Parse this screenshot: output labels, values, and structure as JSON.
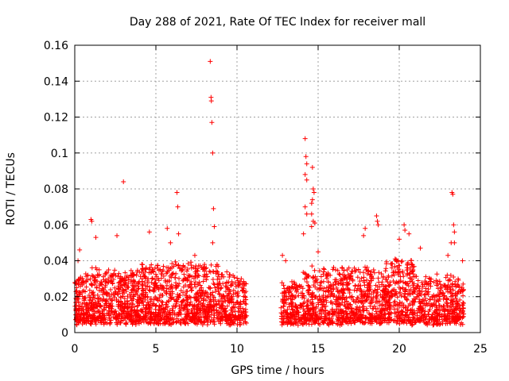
{
  "chart_data": {
    "type": "scatter",
    "title": "Day 288 of 2021, Rate Of TEC Index for receiver mall",
    "xlabel": "GPS time / hours",
    "ylabel": "ROTI / TECUs",
    "xlim": [
      0,
      25
    ],
    "ylim": [
      0,
      0.16
    ],
    "xticks": [
      0,
      5,
      10,
      15,
      20,
      25
    ],
    "xtick_labels": [
      "0",
      "5",
      "10",
      "15",
      "20",
      "25"
    ],
    "yticks": [
      0,
      0.02,
      0.04,
      0.06,
      0.08,
      0.1,
      0.12,
      0.14,
      0.16
    ],
    "ytick_labels": [
      "0",
      "0.02",
      "0.04",
      "0.06",
      "0.08",
      "0.1",
      "0.12",
      "0.14",
      "0.16"
    ],
    "grid": true,
    "marker": "+",
    "color": "#ff0000",
    "gap": [
      10.6,
      12.7
    ],
    "series": [
      {
        "name": "ROTI",
        "points": [
          [
            8.35,
            0.151
          ],
          [
            8.4,
            0.131
          ],
          [
            8.42,
            0.129
          ],
          [
            8.45,
            0.117
          ],
          [
            8.5,
            0.1
          ],
          [
            8.55,
            0.069
          ],
          [
            8.6,
            0.059
          ],
          [
            8.5,
            0.05
          ],
          [
            3.0,
            0.084
          ],
          [
            6.3,
            0.078
          ],
          [
            6.35,
            0.07
          ],
          [
            5.7,
            0.058
          ],
          [
            4.6,
            0.056
          ],
          [
            1.0,
            0.063
          ],
          [
            1.05,
            0.062
          ],
          [
            2.6,
            0.054
          ],
          [
            1.3,
            0.053
          ],
          [
            6.4,
            0.055
          ],
          [
            5.9,
            0.05
          ],
          [
            7.4,
            0.043
          ],
          [
            0.3,
            0.046
          ],
          [
            0.2,
            0.04
          ],
          [
            14.2,
            0.108
          ],
          [
            14.25,
            0.098
          ],
          [
            14.3,
            0.094
          ],
          [
            14.65,
            0.092
          ],
          [
            14.2,
            0.088
          ],
          [
            14.3,
            0.085
          ],
          [
            14.7,
            0.08
          ],
          [
            14.75,
            0.078
          ],
          [
            14.65,
            0.074
          ],
          [
            14.6,
            0.072
          ],
          [
            14.2,
            0.07
          ],
          [
            14.3,
            0.066
          ],
          [
            14.6,
            0.066
          ],
          [
            14.7,
            0.062
          ],
          [
            14.8,
            0.061
          ],
          [
            14.1,
            0.055
          ],
          [
            14.6,
            0.059
          ],
          [
            15.0,
            0.045
          ],
          [
            18.6,
            0.065
          ],
          [
            18.65,
            0.062
          ],
          [
            18.7,
            0.06
          ],
          [
            17.9,
            0.058
          ],
          [
            17.8,
            0.054
          ],
          [
            20.3,
            0.06
          ],
          [
            20.35,
            0.057
          ],
          [
            20.6,
            0.055
          ],
          [
            20.0,
            0.052
          ],
          [
            21.3,
            0.047
          ],
          [
            23.25,
            0.078
          ],
          [
            23.3,
            0.077
          ],
          [
            23.35,
            0.06
          ],
          [
            23.4,
            0.056
          ],
          [
            23.2,
            0.05
          ],
          [
            23.4,
            0.05
          ],
          [
            23.9,
            0.04
          ],
          [
            23.0,
            0.043
          ],
          [
            12.8,
            0.043
          ],
          [
            13.0,
            0.04
          ]
        ]
      }
    ]
  }
}
